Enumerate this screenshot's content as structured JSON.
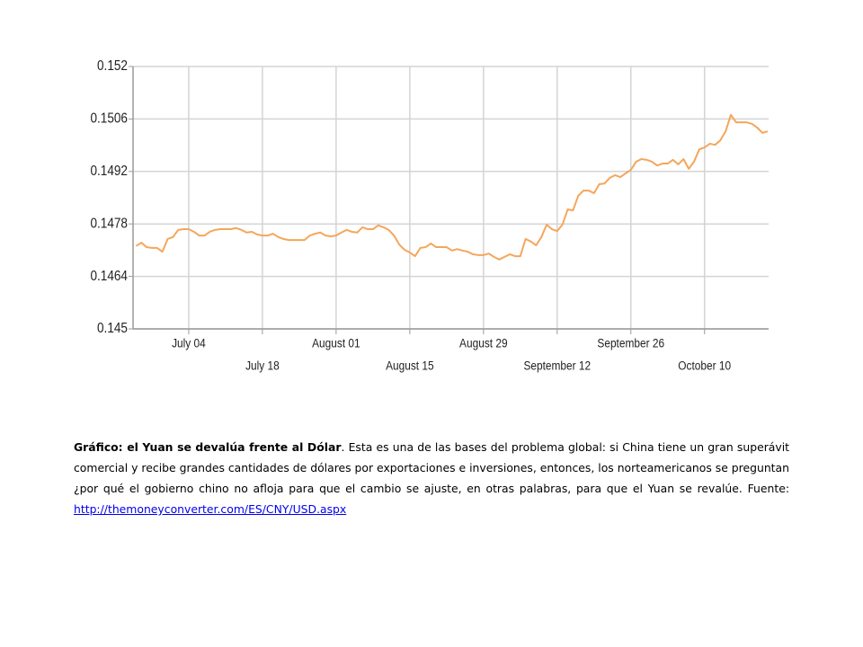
{
  "chart_data": {
    "type": "line",
    "categories": [
      null,
      null,
      null,
      null,
      null,
      null,
      null,
      null,
      null,
      null,
      "July 04",
      null,
      null,
      null,
      null,
      null,
      null,
      null,
      null,
      null,
      null,
      null,
      null,
      null,
      "July 18",
      null,
      null,
      null,
      null,
      null,
      null,
      null,
      null,
      null,
      null,
      null,
      null,
      null,
      "August 01",
      null,
      null,
      null,
      null,
      null,
      null,
      null,
      null,
      null,
      null,
      null,
      null,
      null,
      "August 15",
      null,
      null,
      null,
      null,
      null,
      null,
      null,
      null,
      null,
      null,
      null,
      null,
      null,
      "August 29",
      null,
      null,
      null,
      null,
      null,
      null,
      null,
      null,
      null,
      null,
      null,
      null,
      null,
      "September 12",
      null,
      null,
      null,
      null,
      null,
      null,
      null,
      null,
      null,
      null,
      null,
      null,
      null,
      "September 26",
      null,
      null,
      null,
      null,
      null,
      null,
      null,
      null,
      null,
      null,
      null,
      null,
      null,
      "October 10",
      null,
      null,
      null,
      null,
      null,
      null,
      null,
      null,
      null,
      null,
      null,
      null
    ],
    "values": [
      0.14721,
      0.1473,
      0.14718,
      0.14716,
      0.14716,
      0.14706,
      0.1474,
      0.14745,
      0.14764,
      0.14766,
      0.14766,
      0.14759,
      0.14749,
      0.14749,
      0.14759,
      0.14764,
      0.14766,
      0.14766,
      0.14766,
      0.14769,
      0.14764,
      0.14757,
      0.14759,
      0.14752,
      0.14749,
      0.14749,
      0.14754,
      0.14745,
      0.1474,
      0.14737,
      0.14737,
      0.14737,
      0.14737,
      0.14749,
      0.14754,
      0.14757,
      0.14749,
      0.14747,
      0.14749,
      0.14757,
      0.14764,
      0.14759,
      0.14757,
      0.14771,
      0.14766,
      0.14766,
      0.14776,
      0.14771,
      0.14764,
      0.14749,
      0.14725,
      0.14711,
      0.14704,
      0.14694,
      0.14716,
      0.14718,
      0.14728,
      0.14718,
      0.14718,
      0.14718,
      0.14709,
      0.14713,
      0.14709,
      0.14706,
      0.14699,
      0.14697,
      0.14697,
      0.14701,
      0.14692,
      0.14685,
      0.14692,
      0.14699,
      0.14694,
      0.14694,
      0.1474,
      0.14733,
      0.14723,
      0.14745,
      0.14778,
      0.14766,
      0.14761,
      0.14778,
      0.14819,
      0.14816,
      0.14855,
      0.14869,
      0.14869,
      0.14862,
      0.14886,
      0.14888,
      0.14903,
      0.1491,
      0.14905,
      0.14915,
      0.14924,
      0.14946,
      0.14953,
      0.14951,
      0.14946,
      0.14936,
      0.14941,
      0.14941,
      0.14951,
      0.14939,
      0.14953,
      0.14927,
      0.14946,
      0.14979,
      0.14984,
      0.14994,
      0.14991,
      0.15003,
      0.15027,
      0.15071,
      0.15051,
      0.15051,
      0.15051,
      0.15047,
      0.15037,
      0.15023,
      0.15027
    ],
    "color": "#f5a65b",
    "ylim": [
      0.145,
      0.152
    ],
    "yticks": [
      0.145,
      0.1464,
      0.1478,
      0.1492,
      0.1506,
      0.152
    ],
    "grid": true
  },
  "caption": {
    "title": "Gráfico: el Yuan se devalúa frente al Dólar",
    "body": ". Esta es  una de las bases del problema global: si China tiene un gran superávit comercial y recibe grandes cantidades de dólares por exportaciones e inversiones,  entonces, los norteamericanos se preguntan ¿por qué el gobierno chino no afloja para que el cambio se ajuste, en otras palabras, para que el Yuan se revalúe. ",
    "source_label": "Fuente: ",
    "source_url": "http://themoneyconverter.com/ES/CNY/USD.aspx"
  }
}
